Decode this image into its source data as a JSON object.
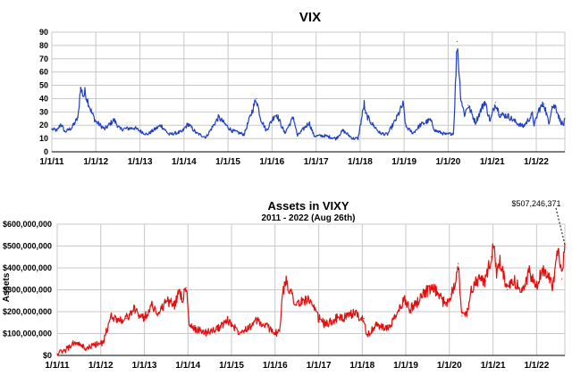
{
  "chart_data": [
    {
      "type": "line",
      "title": "VIX",
      "subtitle": "",
      "xlabel": "",
      "ylabel": "",
      "ylim": [
        0,
        90
      ],
      "yticks": [
        0,
        10,
        20,
        30,
        40,
        50,
        60,
        70,
        80,
        90
      ],
      "ytick_labels": [
        "0",
        "10",
        "20",
        "30",
        "40",
        "50",
        "60",
        "70",
        "80",
        "90"
      ],
      "xlim": [
        "2011-01-01",
        "2022-08-26"
      ],
      "xtick_labels": [
        "1/1/11",
        "1/1/12",
        "1/1/13",
        "1/1/14",
        "1/1/15",
        "1/1/16",
        "1/1/17",
        "1/1/18",
        "1/1/19",
        "1/1/20",
        "1/1/21",
        "1/1/22"
      ],
      "grid": true,
      "series": [
        {
          "name": "",
          "color": "#1f3fbf",
          "x": [
            "2011-01-01",
            "2011-02-15",
            "2011-03-16",
            "2011-04-20",
            "2011-06-15",
            "2011-08-08",
            "2011-08-25",
            "2011-09-22",
            "2011-10-03",
            "2011-11-25",
            "2011-12-30",
            "2012-03-15",
            "2012-05-30",
            "2012-07-20",
            "2012-11-15",
            "2013-03-01",
            "2013-06-24",
            "2013-08-30",
            "2013-12-15",
            "2014-02-03",
            "2014-04-15",
            "2014-07-03",
            "2014-10-15",
            "2014-12-16",
            "2015-02-01",
            "2015-05-15",
            "2015-08-24",
            "2015-09-29",
            "2015-11-15",
            "2016-01-20",
            "2016-02-11",
            "2016-04-15",
            "2016-06-27",
            "2016-07-30",
            "2016-11-04",
            "2016-12-15",
            "2017-03-15",
            "2017-06-15",
            "2017-08-11",
            "2017-11-01",
            "2017-12-15",
            "2018-02-05",
            "2018-02-12",
            "2018-04-02",
            "2018-06-15",
            "2018-08-15",
            "2018-10-29",
            "2018-12-24",
            "2019-01-15",
            "2019-03-15",
            "2019-05-13",
            "2019-08-05",
            "2019-09-15",
            "2019-12-15",
            "2020-02-15",
            "2020-03-16",
            "2020-04-15",
            "2020-05-15",
            "2020-06-15",
            "2020-08-15",
            "2020-10-30",
            "2020-12-15",
            "2021-01-27",
            "2021-03-04",
            "2021-05-12",
            "2021-07-19",
            "2021-09-15",
            "2021-11-30",
            "2021-12-15",
            "2022-01-24",
            "2022-03-07",
            "2022-04-15",
            "2022-05-09",
            "2022-06-13",
            "2022-07-15",
            "2022-08-15",
            "2022-08-26"
          ],
          "y": [
            17,
            16,
            21,
            15,
            18,
            26,
            48,
            42,
            45,
            30,
            23,
            17,
            24,
            17,
            18,
            13,
            20,
            13,
            15,
            21,
            14,
            11,
            26,
            20,
            16,
            13,
            40,
            25,
            16,
            27,
            28,
            14,
            26,
            12,
            22,
            12,
            12,
            10,
            16,
            10,
            10,
            37,
            29,
            22,
            14,
            13,
            25,
            36,
            19,
            14,
            20,
            24,
            16,
            13,
            14,
            83,
            41,
            28,
            35,
            22,
            38,
            23,
            37,
            28,
            27,
            22,
            19,
            28,
            20,
            32,
            36,
            21,
            34,
            34,
            24,
            20,
            25
          ]
        }
      ]
    },
    {
      "type": "area",
      "title": "Assets in VIXY",
      "subtitle": "2011 - 2022 (Aug 26th)",
      "xlabel": "",
      "ylabel": "Assets",
      "ylim": [
        0,
        600000000
      ],
      "yticks": [
        0,
        100000000,
        200000000,
        300000000,
        400000000,
        500000000,
        600000000
      ],
      "ytick_labels": [
        "$0",
        "$100,000,000",
        "$200,000,000",
        "$300,000,000",
        "$400,000,000",
        "$500,000,000",
        "$600,000,000"
      ],
      "xlim": [
        "2011-01-01",
        "2022-08-26"
      ],
      "xtick_labels": [
        "1/1/11",
        "1/1/12",
        "1/1/13",
        "1/1/14",
        "1/1/15",
        "1/1/16",
        "1/1/17",
        "1/1/18",
        "1/1/19",
        "1/1/20",
        "1/1/21",
        "1/1/22"
      ],
      "grid": true,
      "annotation": "$507,246,371",
      "series": [
        {
          "name": "",
          "color": "#e01010",
          "x": [
            "2011-01-01",
            "2011-03-01",
            "2011-06-01",
            "2011-09-01",
            "2011-11-15",
            "2012-01-15",
            "2012-04-01",
            "2012-06-01",
            "2012-08-01",
            "2012-10-01",
            "2013-01-01",
            "2013-03-01",
            "2013-05-01",
            "2013-07-01",
            "2013-09-15",
            "2013-10-15",
            "2013-11-15",
            "2013-12-20",
            "2014-01-10",
            "2014-02-15",
            "2014-03-15",
            "2014-06-01",
            "2014-09-01",
            "2014-12-01",
            "2015-03-01",
            "2015-06-01",
            "2015-08-01",
            "2015-09-15",
            "2015-11-01",
            "2016-01-15",
            "2016-02-10",
            "2016-03-01",
            "2016-04-01",
            "2016-07-01",
            "2016-10-01",
            "2017-01-01",
            "2017-03-01",
            "2017-06-01",
            "2017-09-01",
            "2017-11-01",
            "2017-12-15",
            "2018-01-15",
            "2018-02-10",
            "2018-03-01",
            "2018-05-01",
            "2018-08-01",
            "2018-10-01",
            "2018-12-24",
            "2019-02-01",
            "2019-04-01",
            "2019-06-01",
            "2019-09-01",
            "2019-12-01",
            "2020-01-15",
            "2020-02-15",
            "2020-03-15",
            "2020-04-15",
            "2020-06-01",
            "2020-07-01",
            "2020-09-01",
            "2020-11-01",
            "2020-12-15",
            "2021-01-10",
            "2021-02-01",
            "2021-03-01",
            "2021-05-01",
            "2021-07-01",
            "2021-09-01",
            "2021-11-01",
            "2022-01-01",
            "2022-02-15",
            "2022-04-01",
            "2022-05-15",
            "2022-07-01",
            "2022-08-01",
            "2022-08-26"
          ],
          "y": [
            8000000,
            20000000,
            60000000,
            30000000,
            50000000,
            55000000,
            180000000,
            160000000,
            170000000,
            210000000,
            170000000,
            230000000,
            190000000,
            250000000,
            230000000,
            300000000,
            260000000,
            310000000,
            140000000,
            120000000,
            120000000,
            105000000,
            120000000,
            160000000,
            110000000,
            130000000,
            160000000,
            140000000,
            130000000,
            100000000,
            110000000,
            270000000,
            340000000,
            230000000,
            260000000,
            170000000,
            140000000,
            170000000,
            175000000,
            200000000,
            165000000,
            170000000,
            90000000,
            100000000,
            140000000,
            120000000,
            170000000,
            260000000,
            210000000,
            240000000,
            290000000,
            300000000,
            230000000,
            280000000,
            330000000,
            420000000,
            180000000,
            200000000,
            300000000,
            350000000,
            340000000,
            450000000,
            500000000,
            360000000,
            430000000,
            300000000,
            340000000,
            290000000,
            380000000,
            310000000,
            390000000,
            380000000,
            320000000,
            480000000,
            350000000,
            507246371
          ]
        }
      ]
    }
  ]
}
